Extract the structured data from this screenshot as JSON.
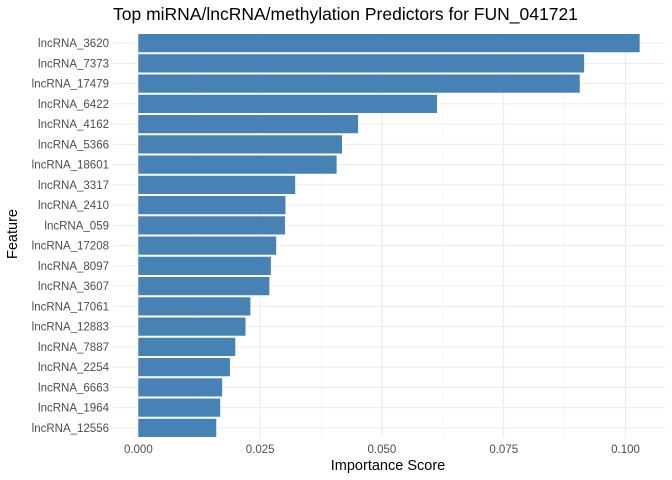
{
  "chart_data": {
    "type": "bar",
    "orientation": "horizontal",
    "title": "Top miRNA/lncRNA/methylation Predictors for FUN_041721",
    "xlabel": "Importance Score",
    "ylabel": "Feature",
    "bar_color": "#4682B4",
    "background": "#FFFFFF",
    "grid": true,
    "xlim": [
      -0.0052,
      0.1081
    ],
    "x_ticks": [
      0.0,
      0.025,
      0.05,
      0.075,
      0.1
    ],
    "x_tick_labels": [
      "0.000",
      "0.025",
      "0.050",
      "0.075",
      "0.100"
    ],
    "categories": [
      "lncRNA_3620",
      "lncRNA_7373",
      "lncRNA_17479",
      "lncRNA_6422",
      "lncRNA_4162",
      "lncRNA_5366",
      "lncRNA_18601",
      "lncRNA_3317",
      "lncRNA_2410",
      "lncRNA_059",
      "lncRNA_17208",
      "lncRNA_8097",
      "lncRNA_3607",
      "lncRNA_17061",
      "lncRNA_12883",
      "lncRNA_7887",
      "lncRNA_2254",
      "lncRNA_6663",
      "lncRNA_1964",
      "lncRNA_12556"
    ],
    "values": [
      0.1029,
      0.0915,
      0.0906,
      0.0613,
      0.0451,
      0.0418,
      0.0407,
      0.0322,
      0.0302,
      0.0301,
      0.0283,
      0.0272,
      0.0269,
      0.023,
      0.022,
      0.0199,
      0.0188,
      0.0172,
      0.0168,
      0.016
    ]
  }
}
